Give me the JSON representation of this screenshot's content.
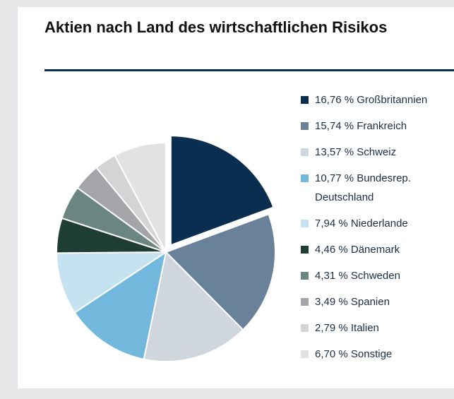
{
  "chart_data": {
    "type": "pie",
    "title": "Aktien nach Land des wirtschaftlichen Risikos",
    "categories": [
      "Großbritannien",
      "Frankreich",
      "Schweiz",
      "Bundesrep. Deutschland",
      "Niederlande",
      "Dänemark",
      "Schweden",
      "Spanien",
      "Italien",
      "Sonstige"
    ],
    "values": [
      16.76,
      15.74,
      13.57,
      10.77,
      7.94,
      4.46,
      4.31,
      3.49,
      2.79,
      6.7
    ],
    "value_labels": [
      "16,76 %",
      "15,74 %",
      "13,57 %",
      "10,77 %",
      "7,94 %",
      "4,46 %",
      "4,31 %",
      "3,49 %",
      "2,79 %",
      "6,70 %"
    ],
    "colors": [
      "#0a2e50",
      "#6a8299",
      "#cfd6de",
      "#72b8dc",
      "#c5e2f0",
      "#1e3e33",
      "#6b8680",
      "#a3a5a8",
      "#d3d4d6",
      "#e1e2e3"
    ],
    "exploded": [
      0
    ]
  }
}
